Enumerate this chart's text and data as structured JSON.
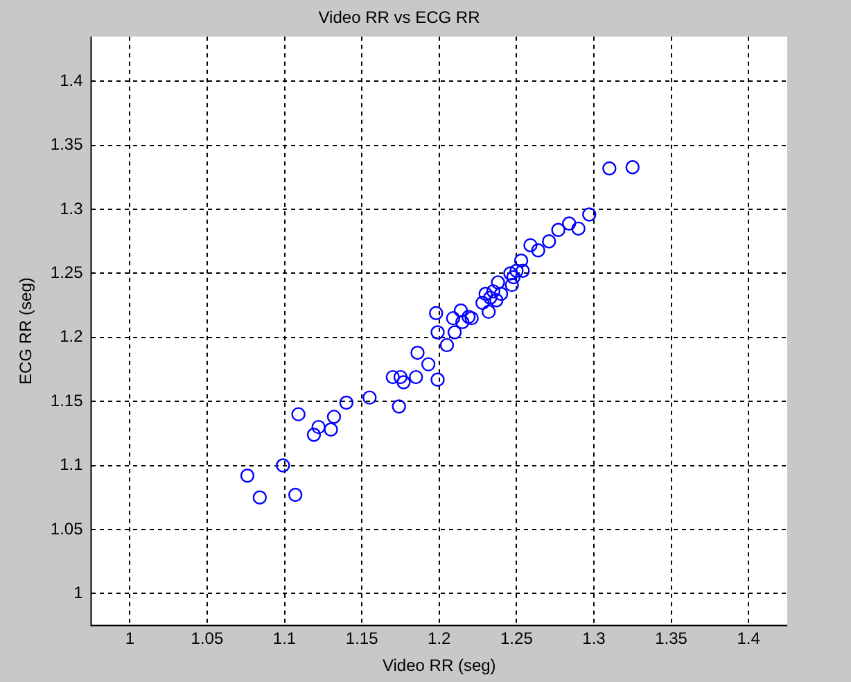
{
  "chart_data": {
    "type": "scatter",
    "title": "Video RR vs ECG RR",
    "xlabel": "Video RR (seg)",
    "ylabel": "ECG RR (seg)",
    "xlim": [
      0.975,
      1.425
    ],
    "ylim": [
      0.975,
      1.435
    ],
    "xticks": [
      1,
      1.05,
      1.1,
      1.15,
      1.2,
      1.25,
      1.3,
      1.35,
      1.4
    ],
    "yticks": [
      1,
      1.05,
      1.1,
      1.15,
      1.2,
      1.25,
      1.3,
      1.35,
      1.4
    ],
    "grid": true,
    "marker": "circle",
    "series": [
      {
        "color": "#0000ff",
        "x": [
          1.076,
          1.084,
          1.099,
          1.107,
          1.109,
          1.119,
          1.122,
          1.13,
          1.132,
          1.14,
          1.155,
          1.17,
          1.174,
          1.175,
          1.177,
          1.185,
          1.186,
          1.193,
          1.199,
          1.198,
          1.199,
          1.205,
          1.209,
          1.21,
          1.214,
          1.215,
          1.219,
          1.221,
          1.228,
          1.23,
          1.232,
          1.233,
          1.235,
          1.237,
          1.238,
          1.24,
          1.246,
          1.247,
          1.248,
          1.25,
          1.253,
          1.254,
          1.259,
          1.264,
          1.271,
          1.277,
          1.284,
          1.29,
          1.297,
          1.31,
          1.325
        ],
        "values": [
          1.092,
          1.075,
          1.1,
          1.077,
          1.14,
          1.124,
          1.13,
          1.128,
          1.138,
          1.149,
          1.153,
          1.169,
          1.146,
          1.169,
          1.165,
          1.169,
          1.188,
          1.179,
          1.167,
          1.219,
          1.204,
          1.194,
          1.215,
          1.204,
          1.221,
          1.212,
          1.216,
          1.215,
          1.227,
          1.234,
          1.22,
          1.231,
          1.236,
          1.229,
          1.243,
          1.234,
          1.25,
          1.241,
          1.247,
          1.252,
          1.26,
          1.252,
          1.272,
          1.268,
          1.275,
          1.284,
          1.289,
          1.285,
          1.296,
          1.332,
          1.333
        ]
      }
    ]
  }
}
